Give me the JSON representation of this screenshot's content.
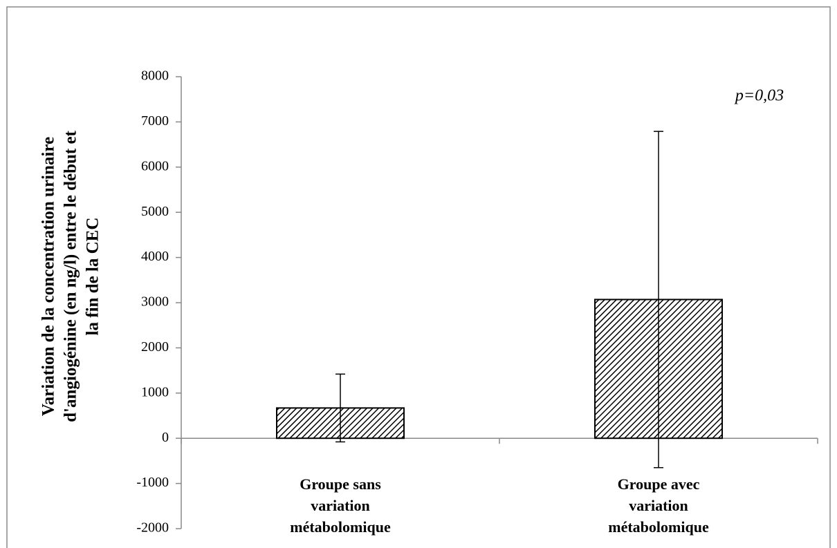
{
  "chart_data": {
    "type": "bar",
    "ylabel": [
      "Variation de la concentration urinaire",
      "d'angiogénine (en ng/l) entre le début et",
      "la fin de la CEC"
    ],
    "annotation": "p=0,03",
    "categories": [
      [
        "Groupe sans",
        "variation",
        "métabolomique"
      ],
      [
        "Groupe avec",
        "variation",
        "métabolomique"
      ]
    ],
    "values": [
      670,
      3070
    ],
    "errors": [
      750,
      3720
    ],
    "color": "#000000",
    "ylim": [
      -2000,
      8000
    ],
    "yticks": [
      -2000,
      -1000,
      0,
      1000,
      2000,
      3000,
      4000,
      5000,
      6000,
      7000,
      8000
    ]
  }
}
